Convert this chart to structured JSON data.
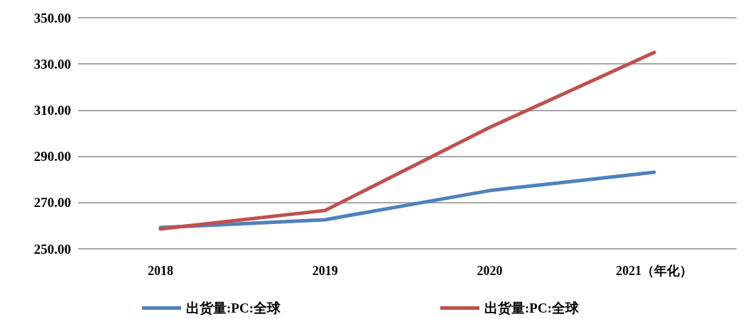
{
  "chart_data": {
    "type": "line",
    "categories": [
      "2018",
      "2019",
      "2020",
      "2021（年化）"
    ],
    "series": [
      {
        "name": "出货量:PC:全球",
        "color": "#4f81bd",
        "values": [
          259.2,
          262.6,
          275.2,
          283.1
        ]
      },
      {
        "name": "出货量:PC:全球",
        "color": "#c0504d",
        "values": [
          258.6,
          266.6,
          302.5,
          335.0
        ]
      }
    ],
    "ylim": [
      250,
      350
    ],
    "yticks": [
      {
        "value": 250,
        "label": "250.00"
      },
      {
        "value": 270,
        "label": "270.00"
      },
      {
        "value": 290,
        "label": "290.00"
      },
      {
        "value": 310,
        "label": "310.00"
      },
      {
        "value": 330,
        "label": "330.00"
      },
      {
        "value": 350,
        "label": "350.00"
      }
    ],
    "grid": "y",
    "legend": "bottom",
    "marker": "none",
    "line_style": "solid"
  }
}
